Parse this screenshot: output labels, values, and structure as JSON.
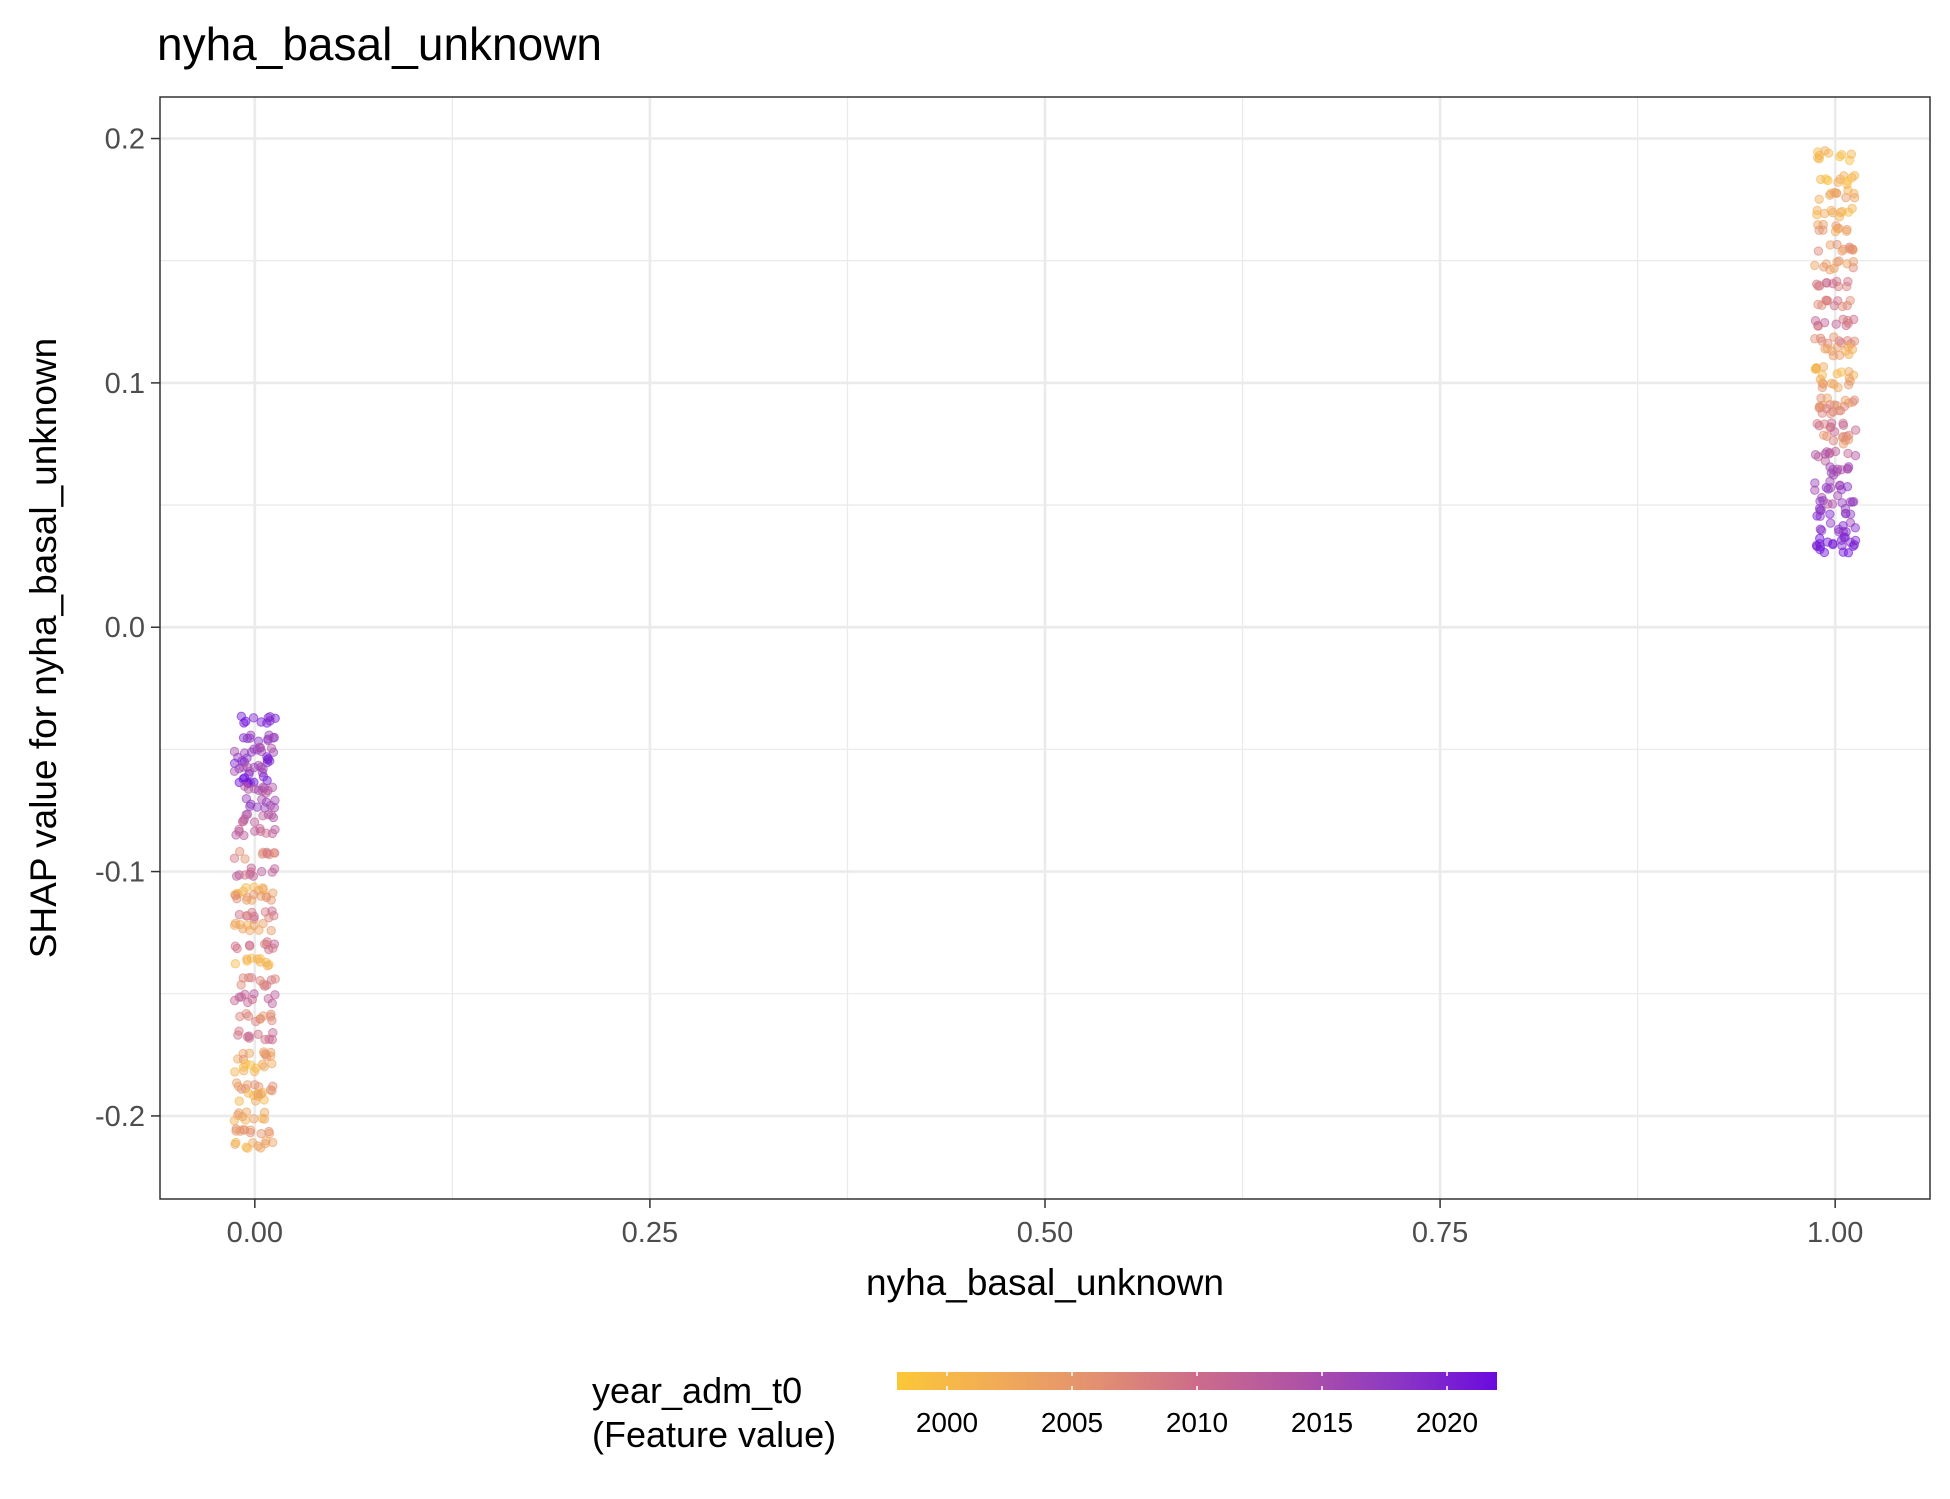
{
  "chart_data": {
    "type": "scatter",
    "title": "nyha_basal_unknown",
    "xlabel": "nyha_basal_unknown",
    "ylabel": "SHAP value for nyha_basal_unknown",
    "xlim": [
      -0.06,
      1.06
    ],
    "ylim": [
      -0.234,
      0.217
    ],
    "x_ticks": [
      0.0,
      0.25,
      0.5,
      0.75,
      1.0
    ],
    "x_tick_labels": [
      "0.00",
      "0.25",
      "0.50",
      "0.75",
      "1.00"
    ],
    "y_ticks": [
      -0.2,
      -0.1,
      0.0,
      0.1,
      0.2
    ],
    "y_tick_labels": [
      "-0.2",
      "-0.1",
      "0.0",
      "0.1",
      "0.2"
    ],
    "grid": true,
    "legend": {
      "title_line1": "year_adm_t0",
      "title_line2": "(Feature value)",
      "placement": "bottom",
      "type": "colorbar",
      "range": [
        1998,
        2022
      ],
      "ticks": [
        2000,
        2005,
        2010,
        2015,
        2020
      ],
      "tick_labels": [
        "2000",
        "2005",
        "2010",
        "2015",
        "2020"
      ],
      "colors": [
        "#fcc737",
        "#f1ab57",
        "#e29071",
        "#cc6c8a",
        "#b053a5",
        "#8c37c4",
        "#6a0bde"
      ]
    },
    "groups": [
      {
        "x": 0,
        "bands": [
          {
            "y": -0.038,
            "year": 2020
          },
          {
            "y": -0.045,
            "year": 2018
          },
          {
            "y": -0.05,
            "year": 2016
          },
          {
            "y": -0.055,
            "year": 2019
          },
          {
            "y": -0.058,
            "year": 2015
          },
          {
            "y": -0.062,
            "year": 2021
          },
          {
            "y": -0.066,
            "year": 2014
          },
          {
            "y": -0.072,
            "year": 2016
          },
          {
            "y": -0.078,
            "year": 2013
          },
          {
            "y": -0.084,
            "year": 2012
          },
          {
            "y": -0.093,
            "year": 2007
          },
          {
            "y": -0.1,
            "year": 2011
          },
          {
            "y": -0.108,
            "year": 2002
          },
          {
            "y": -0.11,
            "year": 2005
          },
          {
            "y": -0.118,
            "year": 2009
          },
          {
            "y": -0.123,
            "year": 2003
          },
          {
            "y": -0.13,
            "year": 2010
          },
          {
            "y": -0.137,
            "year": 2001
          },
          {
            "y": -0.145,
            "year": 2008
          },
          {
            "y": -0.152,
            "year": 2011
          },
          {
            "y": -0.16,
            "year": 2006
          },
          {
            "y": -0.167,
            "year": 2010
          },
          {
            "y": -0.175,
            "year": 2004
          },
          {
            "y": -0.18,
            "year": 2001
          },
          {
            "y": -0.188,
            "year": 2006
          },
          {
            "y": -0.192,
            "year": 2002
          },
          {
            "y": -0.2,
            "year": 2003
          },
          {
            "y": -0.206,
            "year": 2005
          },
          {
            "y": -0.212,
            "year": 2002
          }
        ]
      },
      {
        "x": 1,
        "bands": [
          {
            "y": 0.193,
            "year": 2001
          },
          {
            "y": 0.183,
            "year": 2000
          },
          {
            "y": 0.177,
            "year": 2003
          },
          {
            "y": 0.17,
            "year": 2001
          },
          {
            "y": 0.163,
            "year": 2004
          },
          {
            "y": 0.155,
            "year": 2006
          },
          {
            "y": 0.148,
            "year": 2005
          },
          {
            "y": 0.14,
            "year": 2009
          },
          {
            "y": 0.132,
            "year": 2008
          },
          {
            "y": 0.125,
            "year": 2010
          },
          {
            "y": 0.118,
            "year": 2007
          },
          {
            "y": 0.113,
            "year": 2003
          },
          {
            "y": 0.105,
            "year": 2002
          },
          {
            "y": 0.1,
            "year": 2004
          },
          {
            "y": 0.092,
            "year": 2005
          },
          {
            "y": 0.089,
            "year": 2007
          },
          {
            "y": 0.082,
            "year": 2010
          },
          {
            "y": 0.077,
            "year": 2006
          },
          {
            "y": 0.07,
            "year": 2013
          },
          {
            "y": 0.064,
            "year": 2015
          },
          {
            "y": 0.058,
            "year": 2017
          },
          {
            "y": 0.052,
            "year": 2016
          },
          {
            "y": 0.047,
            "year": 2019
          },
          {
            "y": 0.041,
            "year": 2018
          },
          {
            "y": 0.035,
            "year": 2020
          },
          {
            "y": 0.032,
            "year": 2021
          }
        ]
      }
    ]
  }
}
